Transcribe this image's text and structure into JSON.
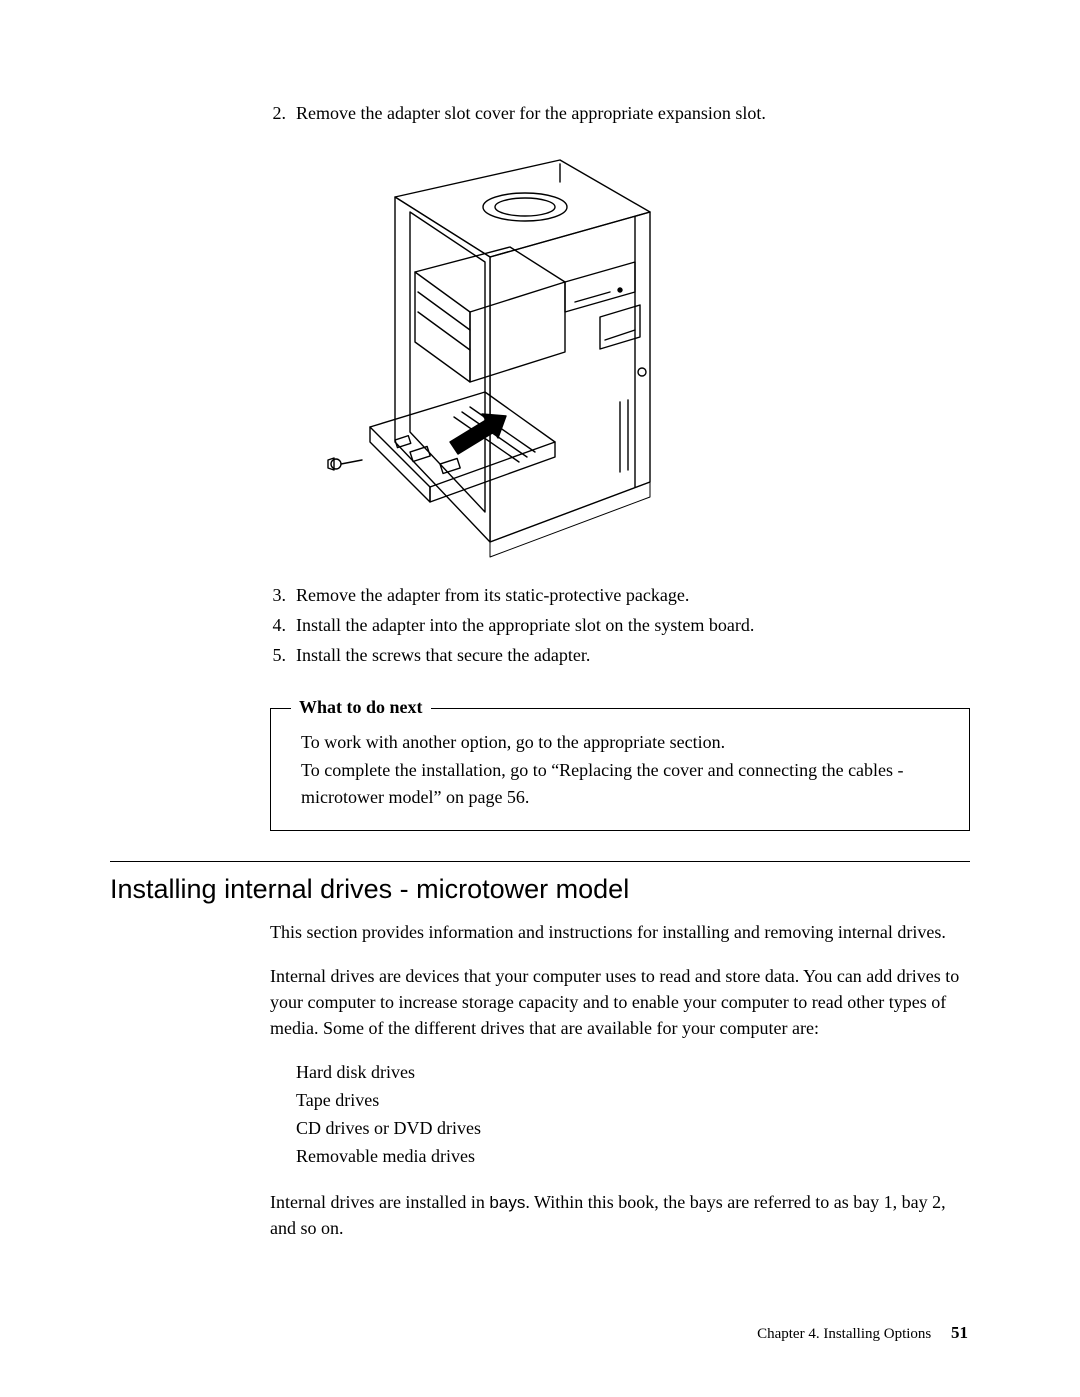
{
  "steps_top": [
    {
      "num": "2.",
      "text": "Remove the adapter slot cover for the appropriate expansion slot."
    }
  ],
  "steps_after": [
    {
      "num": "3.",
      "text": "Remove the adapter from its static-protective package."
    },
    {
      "num": "4.",
      "text": "Install the adapter into the appropriate slot on the system board."
    },
    {
      "num": "5.",
      "text": "Install the screws that secure the adapter."
    }
  ],
  "box": {
    "title": "What to do next",
    "line1": "To work with another option, go to the appropriate section.",
    "line2": "To complete the installation, go to “Replacing the cover and connecting the cables - microtower model” on page 56."
  },
  "heading": "Installing internal drives - microtower model",
  "para1": "This section provides information and instructions for installing and removing internal drives.",
  "para2": "Internal drives are devices that your computer uses to read and store data. You can add drives to your computer to increase storage capacity and to enable your computer to read other types of media. Some of the different drives that are available for your computer are:",
  "drive_list": [
    "Hard disk drives",
    "Tape drives",
    "CD drives or DVD drives",
    "Removable media drives"
  ],
  "para3_pre": "Internal drives are installed in ",
  "para3_bays": "bays",
  "para3_post": ". Within this book, the bays are referred to as bay 1, bay 2, and so on.",
  "footer_chapter": "Chapter 4. Installing Options",
  "footer_page": "51",
  "colors": {
    "text": "#000000",
    "bg": "#ffffff",
    "line": "#000000"
  }
}
